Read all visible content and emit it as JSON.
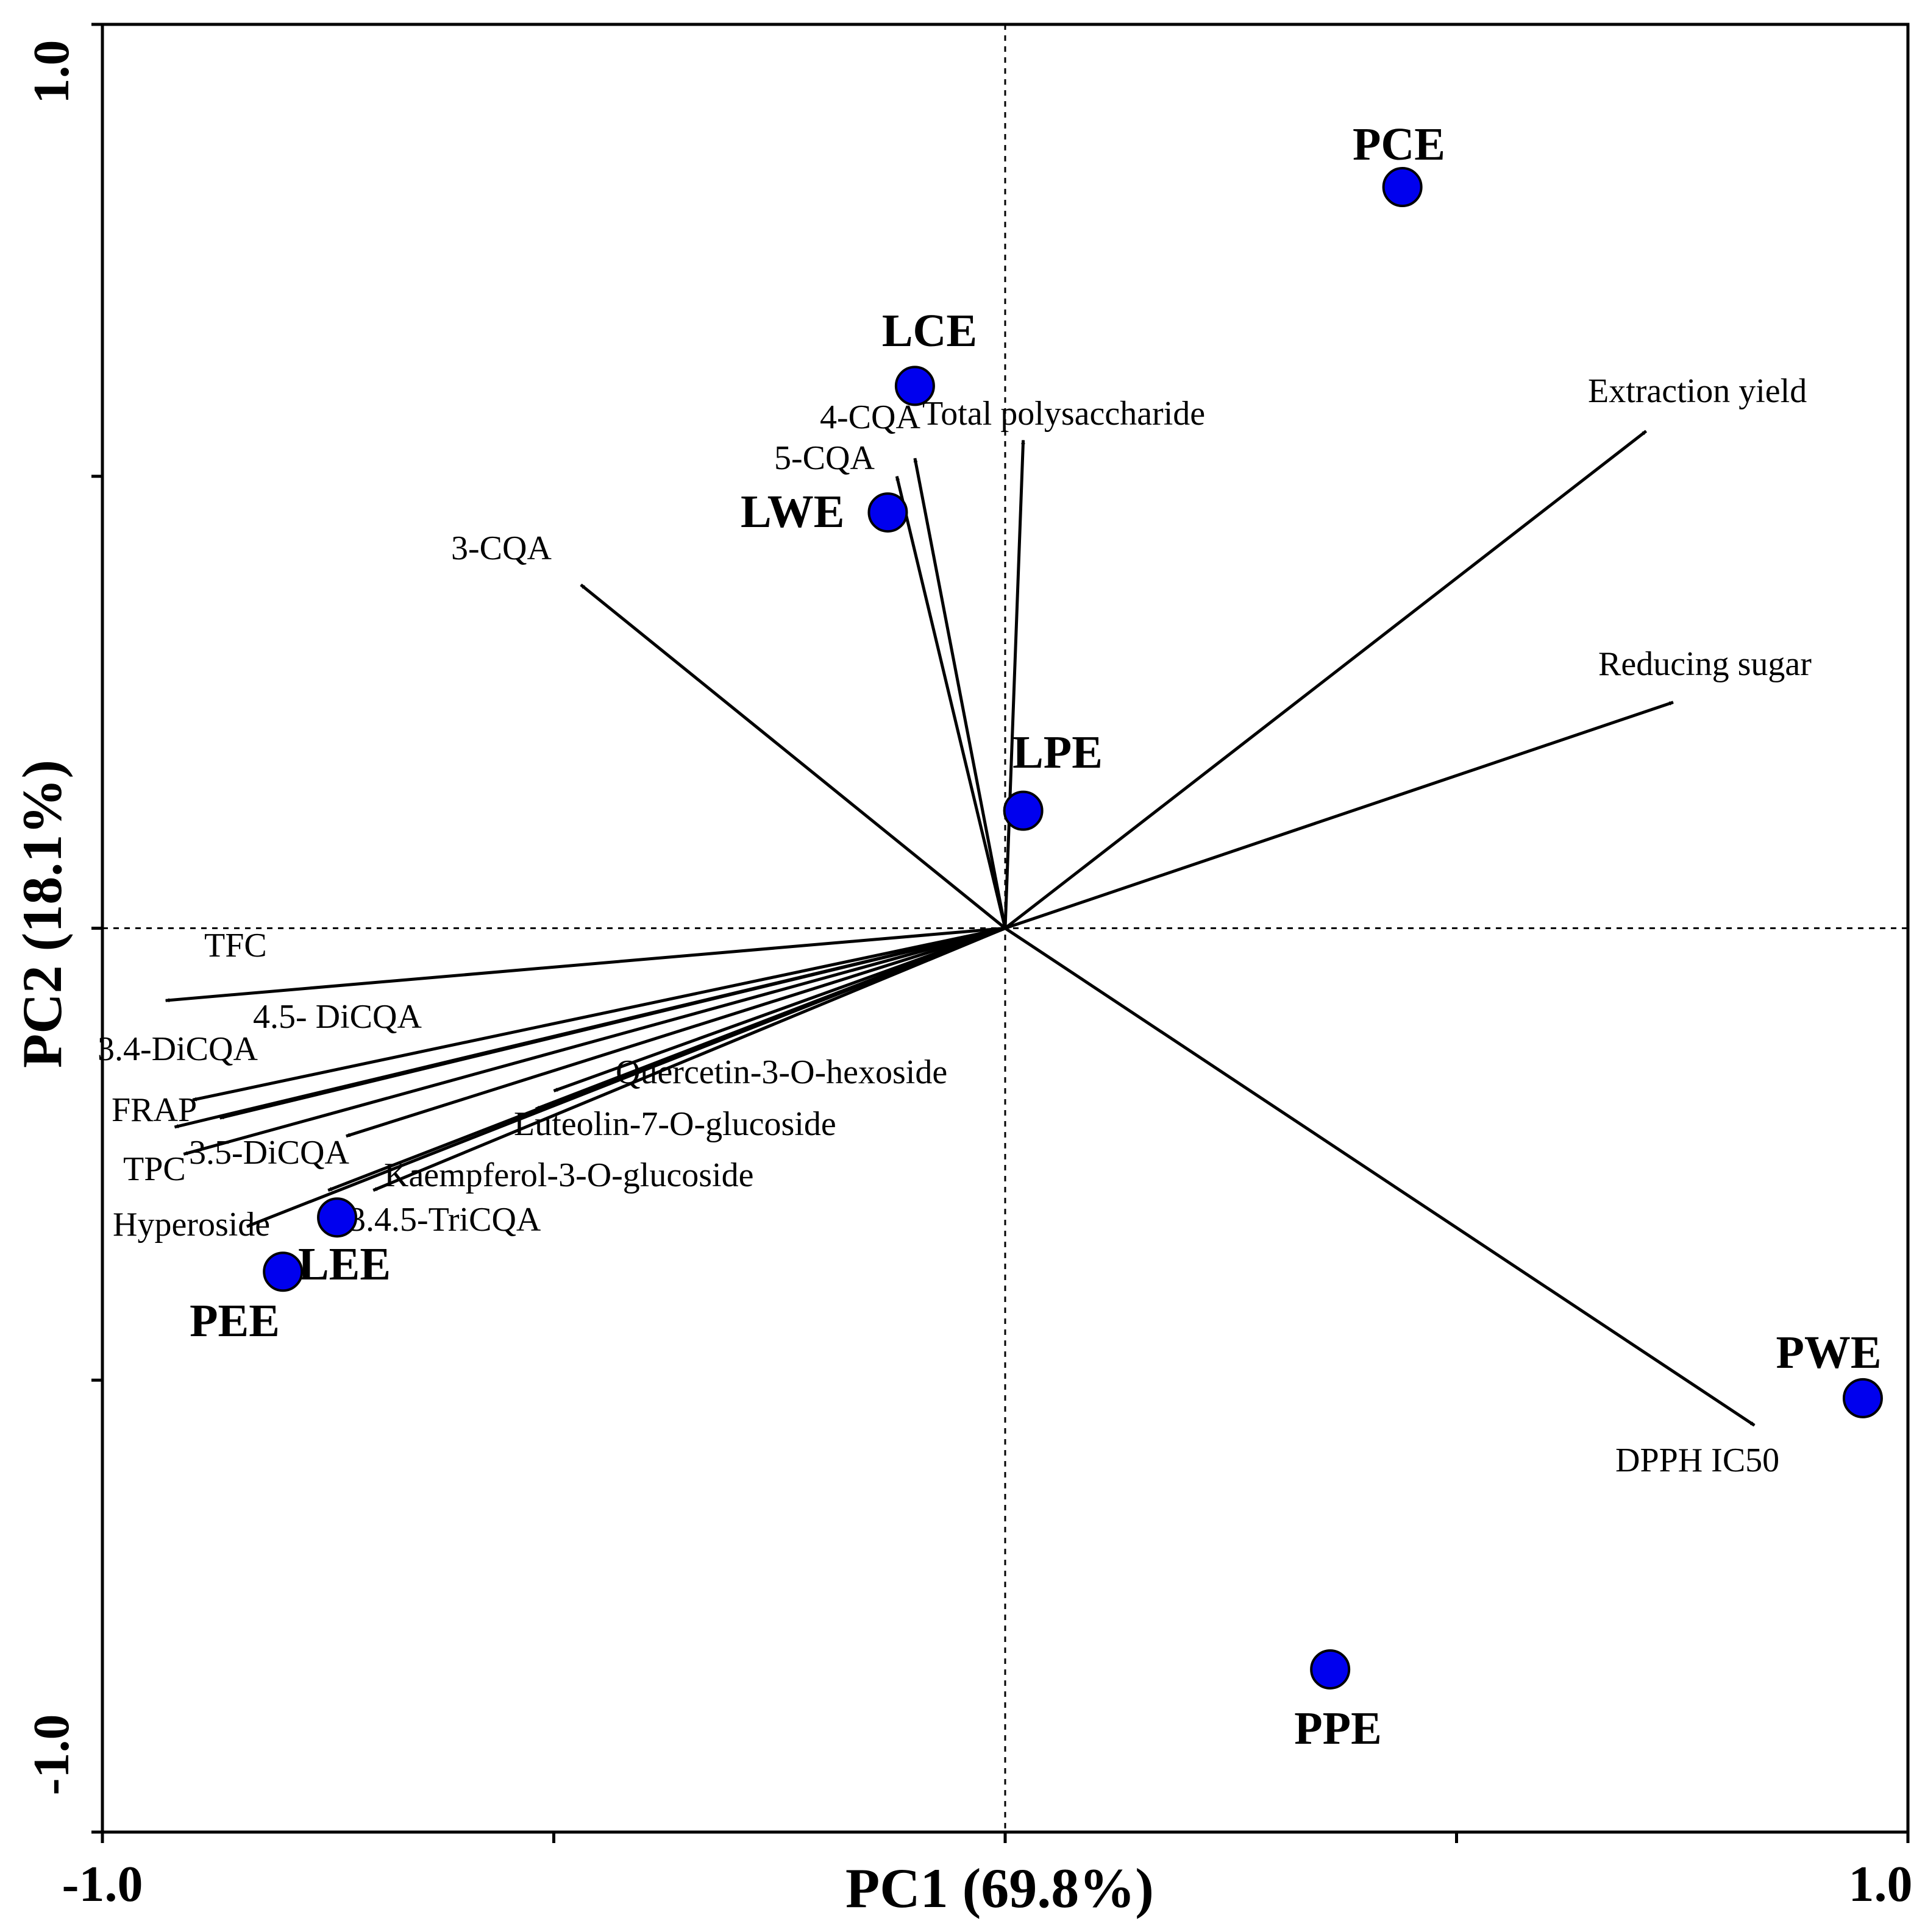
{
  "chart_data": {
    "type": "scatter",
    "subtype": "pca-biplot",
    "xlabel": "PC1 (69.8%)",
    "ylabel": "PC2 (18.1%)",
    "xlim": [
      -1.0,
      1.0
    ],
    "ylim": [
      -1.0,
      1.0
    ],
    "x_tick_labels": [
      "-1.0",
      "1.0"
    ],
    "y_tick_labels": [
      "-1.0",
      "1.0"
    ],
    "x_ticks": [
      -1.0,
      -0.5,
      0.0,
      0.5,
      1.0
    ],
    "y_ticks": [
      -1.0,
      -0.5,
      0.0,
      0.5,
      1.0
    ],
    "reference_lines": {
      "x": 0,
      "y": 0
    },
    "colors": {
      "points": "#0000ee",
      "vectors": "#000000",
      "blue_vector": "#1a1a66"
    },
    "loadings": [
      {
        "name": "TFC",
        "x": -0.93,
        "y": -0.08
      },
      {
        "name": "4.5- DiCQA",
        "x": -0.9,
        "y": -0.19
      },
      {
        "name": "3.4-DiCQA",
        "x": -0.92,
        "y": -0.22
      },
      {
        "name": "FRAP",
        "x": -0.87,
        "y": -0.21
      },
      {
        "name": "TPC",
        "x": -0.91,
        "y": -0.25
      },
      {
        "name": "3.5-DiCQA",
        "x": -0.73,
        "y": -0.23
      },
      {
        "name": "Hyperoside",
        "x": -0.84,
        "y": -0.33
      },
      {
        "name": "3.4.5-TriCQA",
        "x": -0.75,
        "y": -0.29
      },
      {
        "name": "Quercetin-3-O-hexoside",
        "x": -0.5,
        "y": -0.18
      },
      {
        "name": "Luteolin-7-O-glucoside",
        "x": -0.52,
        "y": -0.2
      },
      {
        "name": "Kaempferol-3-O-glucoside",
        "x": -0.7,
        "y": -0.29
      },
      {
        "name": "4-CQA",
        "x": -0.12,
        "y": 0.5
      },
      {
        "name": "5-CQA",
        "x": -0.1,
        "y": 0.52
      },
      {
        "name": "Total polysaccharide",
        "x": 0.02,
        "y": 0.54
      },
      {
        "name": "3-CQA",
        "x": -0.47,
        "y": 0.38
      },
      {
        "name": "Extraction yield",
        "x": 0.71,
        "y": 0.55
      },
      {
        "name": "Reducing sugar",
        "x": 0.74,
        "y": 0.25
      },
      {
        "name": "DPPH IC50",
        "x": 0.83,
        "y": -0.55
      }
    ],
    "scores": [
      {
        "name": "PCE",
        "x": 0.44,
        "y": 0.82
      },
      {
        "name": "LCE",
        "x": -0.1,
        "y": 0.6
      },
      {
        "name": "LWE",
        "x": -0.13,
        "y": 0.46
      },
      {
        "name": "LPE",
        "x": 0.02,
        "y": 0.13
      },
      {
        "name": "LEE",
        "x": -0.74,
        "y": -0.32
      },
      {
        "name": "PEE",
        "x": -0.8,
        "y": -0.38
      },
      {
        "name": "PWE",
        "x": 0.95,
        "y": -0.52
      },
      {
        "name": "PPE",
        "x": 0.36,
        "y": -0.82
      }
    ]
  }
}
